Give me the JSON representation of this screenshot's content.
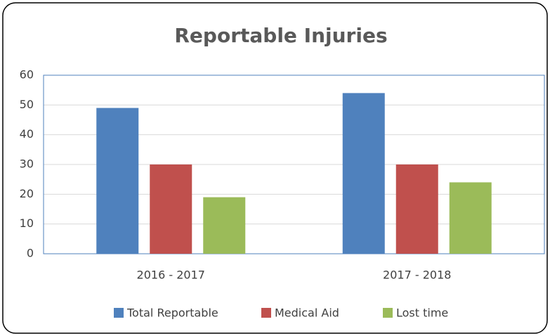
{
  "chart_data": {
    "type": "bar",
    "title": "Reportable Injuries",
    "categories": [
      "2016 - 2017",
      "2017 - 2018"
    ],
    "series": [
      {
        "name": "Total Reportable",
        "color": "#4f81bd",
        "values": [
          49,
          54
        ]
      },
      {
        "name": "Medical Aid",
        "color": "#c0504d",
        "values": [
          30,
          30
        ]
      },
      {
        "name": "Lost time",
        "color": "#9bbb59",
        "values": [
          19,
          24
        ]
      }
    ],
    "ylim": [
      0,
      60
    ],
    "yticks": [
      0,
      10,
      20,
      30,
      40,
      50,
      60
    ],
    "grid": true,
    "legend": "bottom"
  }
}
